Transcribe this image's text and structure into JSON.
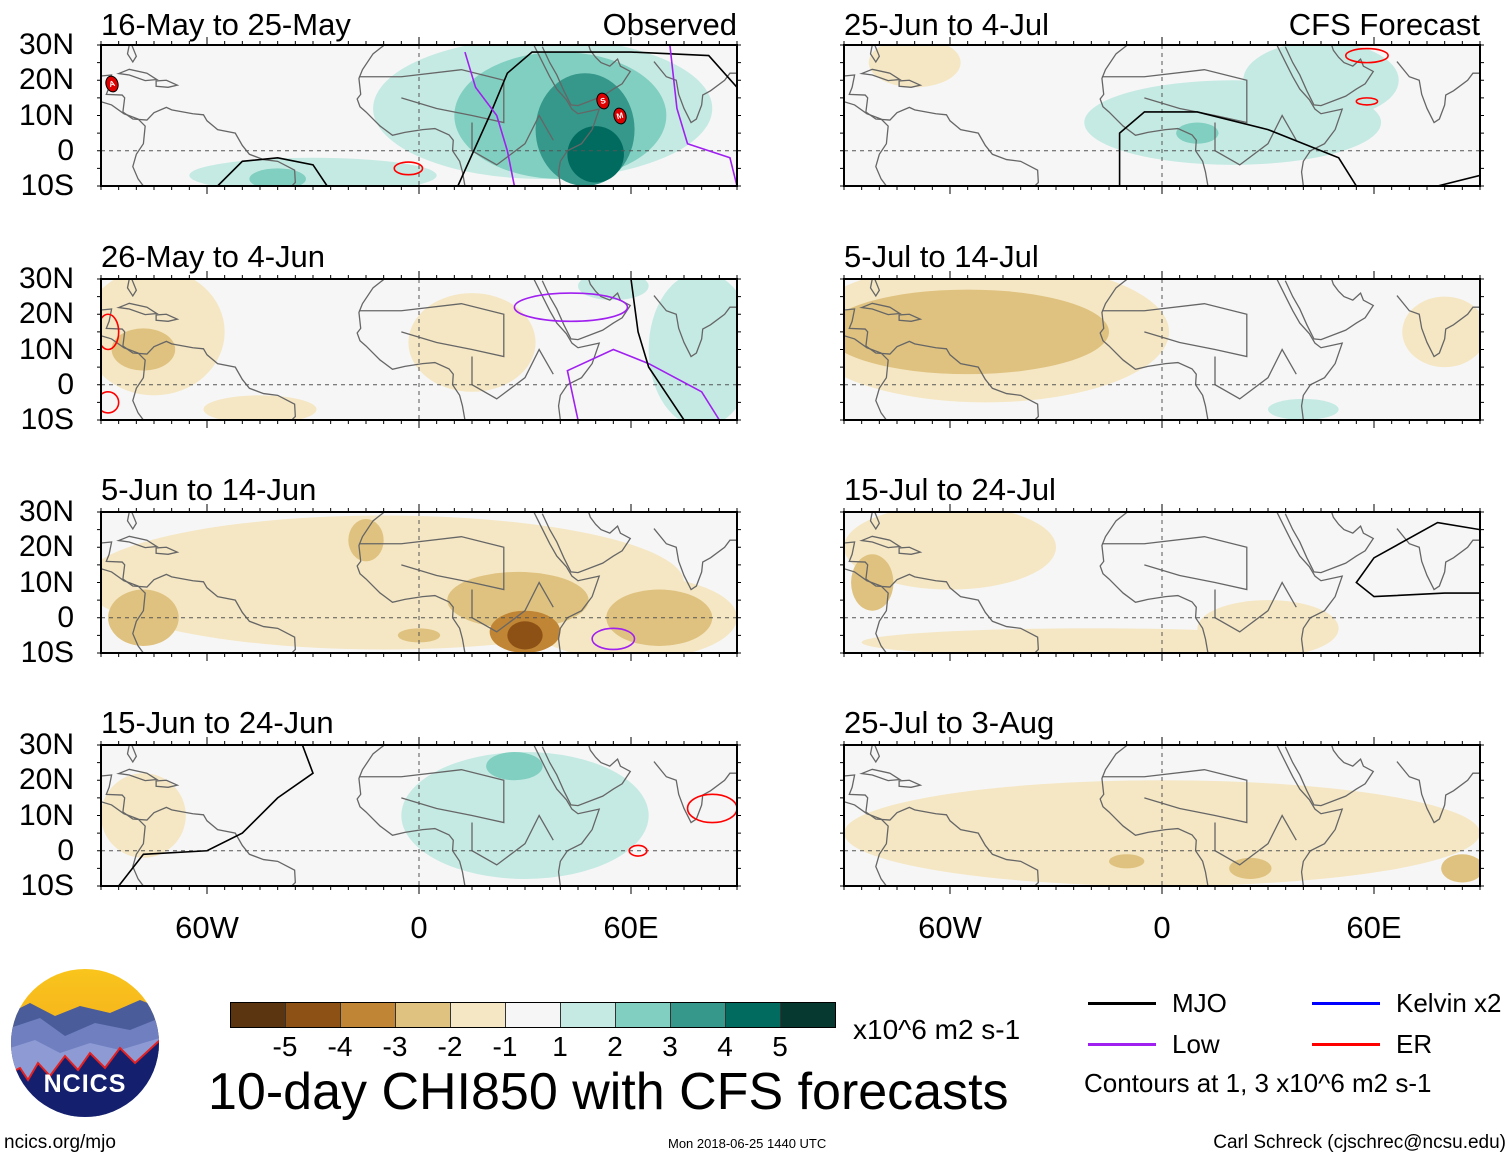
{
  "figure": {
    "title": "10-day CHI850 with CFS forecasts",
    "left_header": "Observed",
    "right_header": "CFS Forecast",
    "footer_left": "ncics.org/mjo",
    "footer_center": "Mon 2018-06-25 1440 UTC",
    "footer_right": "Carl Schreck (cjschrec@ncsu.edu)",
    "logo_text": "NCICS"
  },
  "axes": {
    "lat_labels": [
      "30N",
      "20N",
      "10N",
      "0",
      "10S"
    ],
    "lat_values": [
      30,
      20,
      10,
      0,
      -10
    ],
    "lon_labels": [
      "60W",
      "0",
      "60E"
    ],
    "lon_values": [
      -60,
      0,
      60
    ],
    "lon_range": [
      -90,
      90
    ],
    "lat_range": [
      -10,
      30
    ]
  },
  "colorbar": {
    "units": "x10^6 m2 s-1",
    "labels": [
      "-5",
      "-4",
      "-3",
      "-2",
      "-1",
      "1",
      "2",
      "3",
      "4",
      "5"
    ],
    "colors": [
      "#5a3510",
      "#8d5115",
      "#c08535",
      "#dfc27f",
      "#f5e7c4",
      "#f6f6f6",
      "#c5eae3",
      "#81cfc1",
      "#36978b",
      "#016b5f",
      "#06392f"
    ],
    "levels": {
      "-5": "#5a3510",
      "-4": "#8d5115",
      "-3": "#c08535",
      "-2": "#dfc27f",
      "-1": "#f5e7c4",
      "1": "#c5eae3",
      "2": "#81cfc1",
      "3": "#36978b",
      "4": "#016b5f",
      "5": "#06392f"
    }
  },
  "legend": {
    "items": [
      {
        "label": "MJO",
        "color": "#000000"
      },
      {
        "label": "Kelvin x2",
        "color": "#0000ff"
      },
      {
        "label": "Low",
        "color": "#a020f0"
      },
      {
        "label": "ER",
        "color": "#ff0000"
      }
    ],
    "note": "Contours at 1, 3 x10^6 m2 s-1"
  },
  "chart_data": [
    {
      "type": "map",
      "title": "16-May to 25-May",
      "source": "Observed",
      "regions": [
        {
          "level": 1,
          "lon": 35,
          "lat": 12,
          "rlon": 48,
          "rlat": 20
        },
        {
          "level": 1,
          "lon": -30,
          "lat": -7,
          "rlon": 35,
          "rlat": 5
        },
        {
          "level": 2,
          "lon": 40,
          "lat": 10,
          "rlon": 30,
          "rlat": 18
        },
        {
          "level": 2,
          "lon": -40,
          "lat": -8,
          "rlon": 8,
          "rlat": 3
        },
        {
          "level": 3,
          "lon": 47,
          "lat": 6,
          "rlon": 14,
          "rlat": 16
        },
        {
          "level": 4,
          "lon": 50,
          "lat": -1,
          "rlon": 8,
          "rlat": 8
        }
      ],
      "contours": [
        {
          "type": "MJO",
          "pts": [
            [
              -57,
              -10
            ],
            [
              -50,
              -3
            ],
            [
              -40,
              -2
            ],
            [
              -30,
              -4
            ],
            [
              -26,
              -10
            ]
          ]
        },
        {
          "type": "MJO",
          "pts": [
            [
              11,
              -10
            ],
            [
              20,
              10
            ],
            [
              25,
              22
            ],
            [
              32,
              28
            ],
            [
              60,
              28
            ],
            [
              82,
              27
            ],
            [
              90,
              18
            ],
            [
              90,
              -10
            ]
          ]
        },
        {
          "type": "Low",
          "pts": [
            [
              13,
              28
            ],
            [
              16,
              18
            ],
            [
              22,
              10
            ],
            [
              25,
              0
            ],
            [
              27,
              -10
            ]
          ]
        },
        {
          "type": "Low",
          "pts": [
            [
              71,
              30
            ],
            [
              73,
              12
            ],
            [
              76,
              2
            ],
            [
              88,
              -2
            ],
            [
              90,
              -10
            ]
          ]
        },
        {
          "type": "ER",
          "ellipse": [
            -3,
            -5,
            4,
            1.8
          ]
        }
      ],
      "storms": [
        {
          "label": "A",
          "lon": -87,
          "lat": 19
        },
        {
          "label": "S",
          "lon": 52,
          "lat": 14
        },
        {
          "label": "M",
          "lon": 57,
          "lat": 10
        }
      ]
    },
    {
      "type": "map",
      "title": "25-Jun to 4-Jul",
      "source": "CFS Forecast",
      "regions": [
        {
          "level": 1,
          "lon": 20,
          "lat": 8,
          "rlon": 42,
          "rlat": 12
        },
        {
          "level": 1,
          "lon": 45,
          "lat": 20,
          "rlon": 22,
          "rlat": 11
        },
        {
          "level": -1,
          "lon": -70,
          "lat": 25,
          "rlon": 13,
          "rlat": 7
        },
        {
          "level": 2,
          "lon": 10,
          "lat": 5,
          "rlon": 6,
          "rlat": 3
        }
      ],
      "contours": [
        {
          "type": "MJO",
          "pts": [
            [
              -12,
              -10
            ],
            [
              -12,
              5
            ],
            [
              -5,
              11
            ],
            [
              10,
              11
            ],
            [
              30,
              6
            ],
            [
              50,
              -2
            ],
            [
              55,
              -10
            ]
          ]
        },
        {
          "type": "MJO",
          "pts": [
            [
              78,
              -10
            ],
            [
              90,
              -7
            ]
          ]
        },
        {
          "type": "ER",
          "ellipse": [
            58,
            27,
            6,
            2
          ]
        },
        {
          "type": "ER",
          "ellipse": [
            58,
            14,
            3,
            1
          ]
        }
      ],
      "storms": []
    },
    {
      "type": "map",
      "title": "26-May to 4-Jun",
      "regions": [
        {
          "level": -1,
          "lon": -75,
          "lat": 15,
          "rlon": 20,
          "rlat": 18
        },
        {
          "level": -1,
          "lon": -45,
          "lat": -7,
          "rlon": 16,
          "rlat": 4
        },
        {
          "level": -1,
          "lon": 15,
          "lat": 12,
          "rlon": 18,
          "rlat": 14
        },
        {
          "level": -2,
          "lon": -78,
          "lat": 10,
          "rlon": 9,
          "rlat": 6
        },
        {
          "level": 1,
          "lon": 80,
          "lat": 10,
          "rlon": 15,
          "rlat": 22
        },
        {
          "level": 1,
          "lon": 55,
          "lat": 28,
          "rlon": 10,
          "rlat": 4
        }
      ],
      "contours": [
        {
          "type": "Low",
          "ellipse": [
            43,
            22,
            16,
            4
          ]
        },
        {
          "type": "Low",
          "pts": [
            [
              45,
              -10
            ],
            [
              42,
              4
            ],
            [
              55,
              10
            ],
            [
              65,
              6
            ],
            [
              80,
              -2
            ],
            [
              85,
              -10
            ]
          ]
        },
        {
          "type": "MJO",
          "pts": [
            [
              60,
              30
            ],
            [
              62,
              15
            ],
            [
              65,
              5
            ],
            [
              75,
              -10
            ]
          ]
        },
        {
          "type": "ER",
          "ellipse": [
            -88,
            15,
            3,
            5
          ]
        },
        {
          "type": "ER",
          "ellipse": [
            -88,
            -5,
            3,
            3
          ]
        }
      ],
      "storms": []
    },
    {
      "type": "map",
      "title": "5-Jul to 14-Jul",
      "regions": [
        {
          "level": -1,
          "lon": -50,
          "lat": 15,
          "rlon": 52,
          "rlat": 20
        },
        {
          "level": -2,
          "lon": -55,
          "lat": 15,
          "rlon": 40,
          "rlat": 12
        },
        {
          "level": -1,
          "lon": 80,
          "lat": 15,
          "rlon": 12,
          "rlat": 10
        },
        {
          "level": 1,
          "lon": 40,
          "lat": -7,
          "rlon": 10,
          "rlat": 3
        }
      ],
      "contours": [],
      "storms": []
    },
    {
      "type": "map",
      "title": "5-Jun to 14-Jun",
      "regions": [
        {
          "level": -1,
          "lon": -10,
          "lat": 10,
          "rlon": 85,
          "rlat": 19
        },
        {
          "level": -1,
          "lon": 60,
          "lat": 0,
          "rlon": 30,
          "rlat": 12
        },
        {
          "level": -2,
          "lon": -78,
          "lat": 0,
          "rlon": 10,
          "rlat": 8
        },
        {
          "level": -2,
          "lon": 0,
          "lat": -5,
          "rlon": 6,
          "rlat": 2
        },
        {
          "level": -2,
          "lon": 28,
          "lat": 5,
          "rlon": 20,
          "rlat": 8
        },
        {
          "level": -2,
          "lon": 68,
          "lat": 0,
          "rlon": 15,
          "rlat": 8
        },
        {
          "level": -2,
          "lon": -15,
          "lat": 22,
          "rlon": 5,
          "rlat": 6
        },
        {
          "level": -3,
          "lon": 30,
          "lat": -4,
          "rlon": 10,
          "rlat": 6
        },
        {
          "level": -4,
          "lon": 30,
          "lat": -5,
          "rlon": 5,
          "rlat": 4
        }
      ],
      "contours": [
        {
          "type": "Low",
          "ellipse": [
            55,
            -6,
            6,
            3
          ]
        }
      ],
      "storms": []
    },
    {
      "type": "map",
      "title": "15-Jul to 24-Jul",
      "regions": [
        {
          "level": -1,
          "lon": -60,
          "lat": 20,
          "rlon": 30,
          "rlat": 12
        },
        {
          "level": -1,
          "lon": -20,
          "lat": -7,
          "rlon": 65,
          "rlat": 4
        },
        {
          "level": -1,
          "lon": 30,
          "lat": -3,
          "rlon": 20,
          "rlat": 8
        },
        {
          "level": -2,
          "lon": -82,
          "lat": 10,
          "rlon": 6,
          "rlat": 8
        }
      ],
      "contours": [
        {
          "type": "MJO",
          "pts": [
            [
              90,
              25
            ],
            [
              78,
              27
            ],
            [
              60,
              17
            ],
            [
              55,
              10
            ],
            [
              60,
              6
            ],
            [
              80,
              7
            ],
            [
              90,
              7
            ]
          ]
        }
      ],
      "storms": []
    },
    {
      "type": "map",
      "title": "15-Jun to 24-Jun",
      "regions": [
        {
          "level": 1,
          "lon": 30,
          "lat": 10,
          "rlon": 35,
          "rlat": 18
        },
        {
          "level": 2,
          "lon": 27,
          "lat": 24,
          "rlon": 8,
          "rlat": 4
        },
        {
          "level": -1,
          "lon": -78,
          "lat": 10,
          "rlon": 12,
          "rlat": 12
        }
      ],
      "contours": [
        {
          "type": "MJO",
          "pts": [
            [
              -85,
              -10
            ],
            [
              -78,
              -1
            ],
            [
              -60,
              0
            ],
            [
              -50,
              5
            ],
            [
              -40,
              15
            ],
            [
              -30,
              22
            ],
            [
              -33,
              30
            ]
          ]
        },
        {
          "type": "ER",
          "ellipse": [
            83,
            12,
            7,
            4
          ]
        },
        {
          "type": "ER",
          "ellipse": [
            62,
            0,
            2.5,
            1.5
          ]
        }
      ],
      "storms": []
    },
    {
      "type": "map",
      "title": "25-Jul to 3-Aug",
      "regions": [
        {
          "level": -1,
          "lon": 0,
          "lat": 5,
          "rlon": 90,
          "rlat": 15
        },
        {
          "level": -2,
          "lon": 25,
          "lat": -5,
          "rlon": 6,
          "rlat": 3
        },
        {
          "level": -2,
          "lon": -10,
          "lat": -3,
          "rlon": 5,
          "rlat": 2
        },
        {
          "level": -2,
          "lon": 85,
          "lat": -5,
          "rlon": 6,
          "rlat": 4
        }
      ],
      "contours": [],
      "storms": []
    }
  ]
}
